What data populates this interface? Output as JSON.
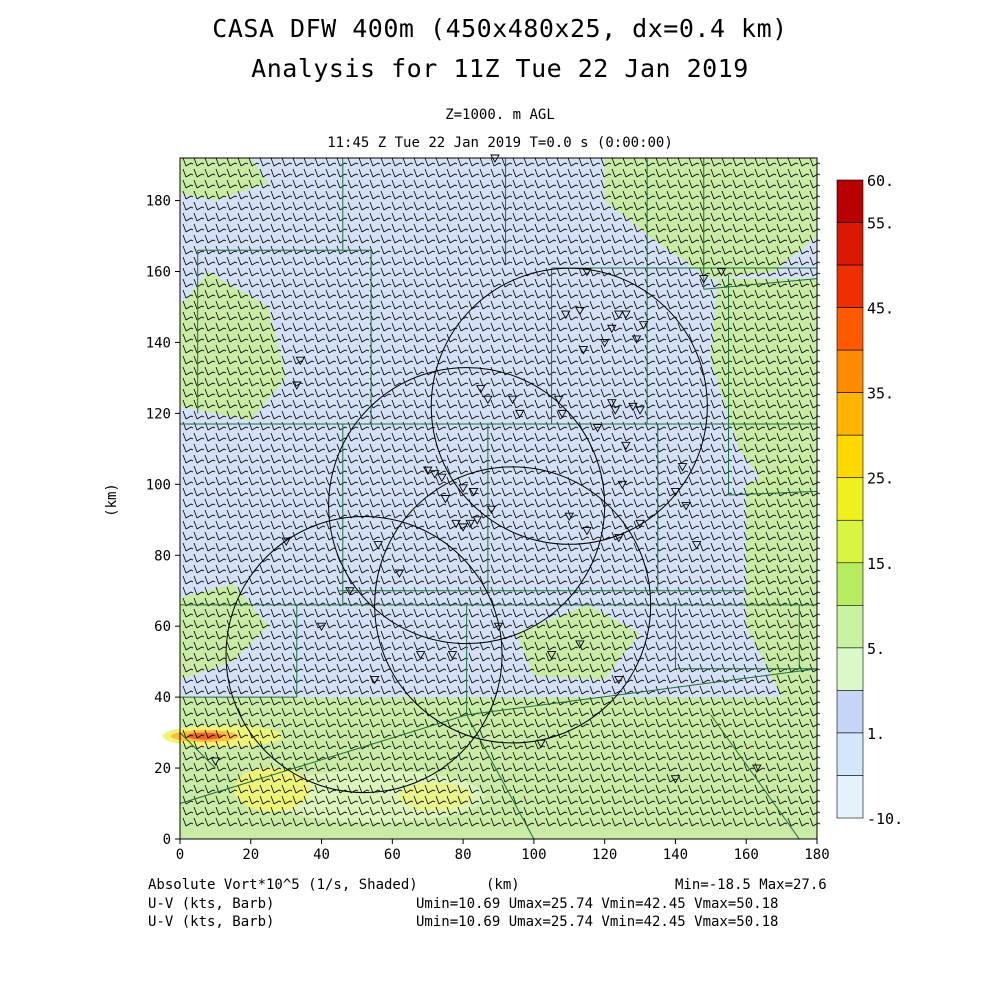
{
  "title_line1": "CASA DFW 400m (450x480x25, dx=0.4 km)",
  "title_line2": "Analysis for 11Z Tue 22 Jan 2019",
  "level_label": "Z=1000. m AGL",
  "time_label": "11:45 Z Tue 22 Jan 2019    T=0.0 s (0:00:00)",
  "axes": {
    "x_label": "(km)",
    "y_label": "(km)",
    "x_ticks": [
      "0",
      "20",
      "40",
      "60",
      "80",
      "100",
      "120",
      "140",
      "160",
      "180"
    ],
    "y_ticks": [
      "0",
      "20",
      "40",
      "60",
      "80",
      "100",
      "120",
      "140",
      "160",
      "180"
    ],
    "x_range": [
      0,
      180
    ],
    "y_range": [
      0,
      192
    ]
  },
  "colorbar": {
    "labels": [
      "60.",
      "55.",
      "45.",
      "35.",
      "25.",
      "15.",
      "5.",
      "1.",
      "-10."
    ],
    "colors": [
      "#b80000",
      "#d81800",
      "#ee3000",
      "#ff5a00",
      "#ff8c00",
      "#ffb400",
      "#ffd800",
      "#f0f020",
      "#d8f440",
      "#b8ec60",
      "#c8f2a0",
      "#dcf8c8",
      "#c8d4f6",
      "#d6e6fa",
      "#e4f2fc"
    ]
  },
  "field_colors": {
    "background": "#d4e0f6",
    "green": "#c8ec9c",
    "light_green": "#dcf4bc",
    "yellow": "#eef478",
    "orange": "#ffbe3c",
    "red": "#f06428",
    "boundary": "#1f6e3c",
    "barb": "#000000"
  },
  "footer": {
    "field_label": "Absolute Vort*10^5 (1/s, Shaded)",
    "x_unit": "(km)",
    "minmax": "Min=-18.5 Max=27.6",
    "barb1_label": "U-V (kts, Barb)",
    "barb1_stats": "Umin=10.69 Umax=25.74 Vmin=42.45 Vmax=50.18",
    "barb2_label": "U-V (kts, Barb)",
    "barb2_stats": "Umin=10.69 Umax=25.74 Vmin=42.45 Vmax=50.18"
  }
}
